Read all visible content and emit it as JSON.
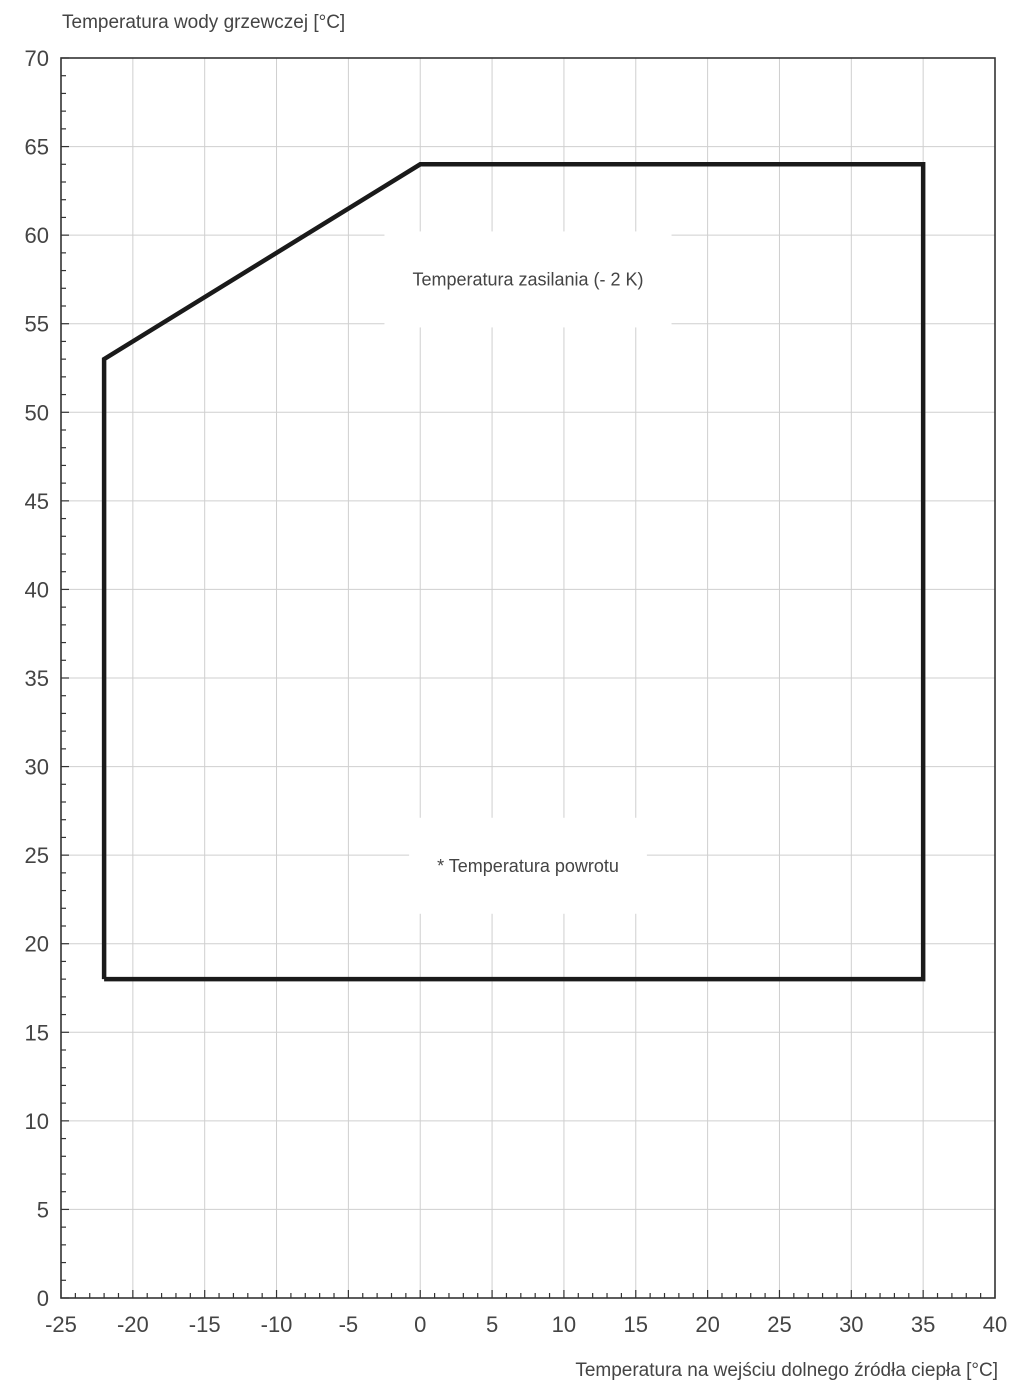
{
  "chart_data": {
    "type": "line",
    "title": "",
    "ylabel": "Temperatura wody grzewczej [°C]",
    "xlabel": "Temperatura na wejściu dolnego źródła ciepła [°C]",
    "xlim": [
      -25,
      40
    ],
    "ylim": [
      0,
      70
    ],
    "x_ticks": [
      -25,
      -20,
      -15,
      -10,
      -5,
      0,
      5,
      10,
      15,
      20,
      25,
      30,
      35,
      40
    ],
    "y_ticks": [
      0,
      5,
      10,
      15,
      20,
      25,
      30,
      35,
      40,
      45,
      50,
      55,
      60,
      65,
      70
    ],
    "x_tick_labels": [
      "-25",
      "-20",
      "-15",
      "-10",
      "-5",
      "0",
      "5",
      "10",
      "15",
      "20",
      "25",
      "30",
      "35",
      "40"
    ],
    "y_tick_labels": [
      "0",
      "5",
      "10",
      "15",
      "20",
      "25",
      "30",
      "35",
      "40",
      "45",
      "50",
      "55",
      "60",
      "65",
      "70"
    ],
    "grid": true,
    "series": [
      {
        "x": [
          -22,
          -22,
          0,
          35,
          35,
          -22
        ],
        "y": [
          18,
          53,
          64,
          64,
          18,
          18
        ],
        "color": "#1a1a1a"
      }
    ],
    "annotations": [
      {
        "text": "Temperatura zasilania (- 2 K)",
        "x": 7.5,
        "y": 57.5
      },
      {
        "text": "* Temperatura powrotu",
        "x": 7.5,
        "y": 24.4
      }
    ]
  }
}
